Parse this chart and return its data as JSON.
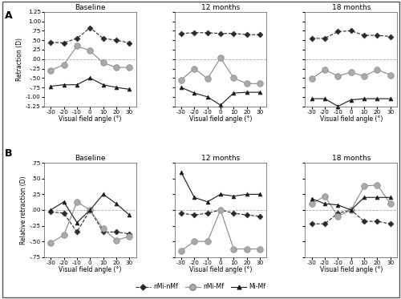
{
  "x": [
    -30,
    -20,
    -10,
    0,
    10,
    20,
    30
  ],
  "panel_A": {
    "baseline": {
      "nMi_nMf": [
        0.45,
        0.43,
        0.55,
        0.83,
        0.55,
        0.5,
        0.43
      ],
      "nMi_Mf": [
        -0.3,
        -0.15,
        0.35,
        0.22,
        -0.1,
        -0.22,
        -0.22
      ],
      "Mi_Mf": [
        -0.72,
        -0.68,
        -0.68,
        -0.5,
        -0.68,
        -0.75,
        -0.8
      ]
    },
    "12months": {
      "nMi_nMf": [
        0.68,
        0.7,
        0.7,
        0.68,
        0.68,
        0.65,
        0.65
      ],
      "nMi_Mf": [
        -0.55,
        -0.25,
        -0.52,
        0.03,
        -0.5,
        -0.65,
        -0.65
      ],
      "Mi_Mf": [
        -0.75,
        -0.9,
        -1.0,
        -1.22,
        -0.9,
        -0.88,
        -0.88
      ]
    },
    "18months": {
      "nMi_nMf": [
        0.55,
        0.55,
        0.73,
        0.75,
        0.63,
        0.63,
        0.6
      ],
      "nMi_Mf": [
        -0.52,
        -0.28,
        -0.45,
        -0.35,
        -0.45,
        -0.28,
        -0.42
      ],
      "Mi_Mf": [
        -1.05,
        -1.05,
        -1.25,
        -1.08,
        -1.05,
        -1.05,
        -1.05
      ]
    }
  },
  "panel_B": {
    "baseline": {
      "nMi_nMf": [
        -0.03,
        -0.05,
        -0.35,
        0.0,
        -0.35,
        -0.35,
        -0.38
      ],
      "nMi_Mf": [
        -0.52,
        -0.4,
        0.13,
        0.0,
        -0.3,
        -0.48,
        -0.42
      ],
      "Mi_Mf": [
        0.0,
        0.13,
        -0.2,
        0.0,
        0.25,
        0.1,
        -0.08
      ]
    },
    "12months": {
      "nMi_nMf": [
        -0.05,
        -0.08,
        -0.05,
        0.0,
        -0.05,
        -0.08,
        -0.1
      ],
      "nMi_Mf": [
        -0.65,
        -0.5,
        -0.5,
        0.0,
        -0.62,
        -0.62,
        -0.62
      ],
      "Mi_Mf": [
        0.6,
        0.2,
        0.13,
        0.25,
        0.22,
        0.25,
        0.25
      ]
    },
    "18months": {
      "nMi_nMf": [
        -0.22,
        -0.22,
        -0.05,
        0.0,
        -0.18,
        -0.18,
        -0.22
      ],
      "nMi_Mf": [
        0.1,
        0.22,
        -0.1,
        0.0,
        0.38,
        0.4,
        0.1
      ],
      "Mi_Mf": [
        0.18,
        0.1,
        0.08,
        0.0,
        0.2,
        0.2,
        0.2
      ]
    }
  },
  "colors": {
    "nMi_nMf": "#2a2a2a",
    "nMi_Mf": "#888888",
    "Mi_Mf": "#1a1a1a"
  },
  "mfacecolors": {
    "nMi_nMf": "#2a2a2a",
    "nMi_Mf": "#aaaaaa",
    "Mi_Mf": "#1a1a1a"
  },
  "titles_A": [
    "Baseline",
    "12 months",
    "18 months"
  ],
  "titles_B": [
    "Baseline",
    "12 months",
    "18 months"
  ],
  "ylabel_A": "Retraction (D)",
  "ylabel_B": "Relative retraction (D)",
  "xlabel": "Visual field angle (°)",
  "ylim_A": [
    -1.25,
    1.25
  ],
  "ylim_B": [
    -0.75,
    0.75
  ],
  "yticks_A": [
    -1.25,
    -1.0,
    -0.75,
    -0.5,
    -0.25,
    0.0,
    0.25,
    0.5,
    0.75,
    1.0,
    1.25
  ],
  "yticks_B": [
    -0.75,
    -0.5,
    -0.25,
    0.0,
    0.25,
    0.5,
    0.75
  ],
  "ytick_labels_A": [
    "-1.25",
    "-1.00",
    "-.75",
    "-.50",
    "-.25",
    ".00",
    ".25",
    ".50",
    ".75",
    "1.00",
    "1.25"
  ],
  "ytick_labels_B": [
    "-.75",
    "-.50",
    "-.25",
    ".00",
    ".25",
    ".50",
    ".75"
  ],
  "xticks": [
    -30,
    -20,
    -10,
    0,
    10,
    20,
    30
  ],
  "label_A": "A",
  "label_B": "B",
  "legend_labels": [
    "nMi-nMf",
    "nMi-Mf",
    "Mi-Mf"
  ]
}
